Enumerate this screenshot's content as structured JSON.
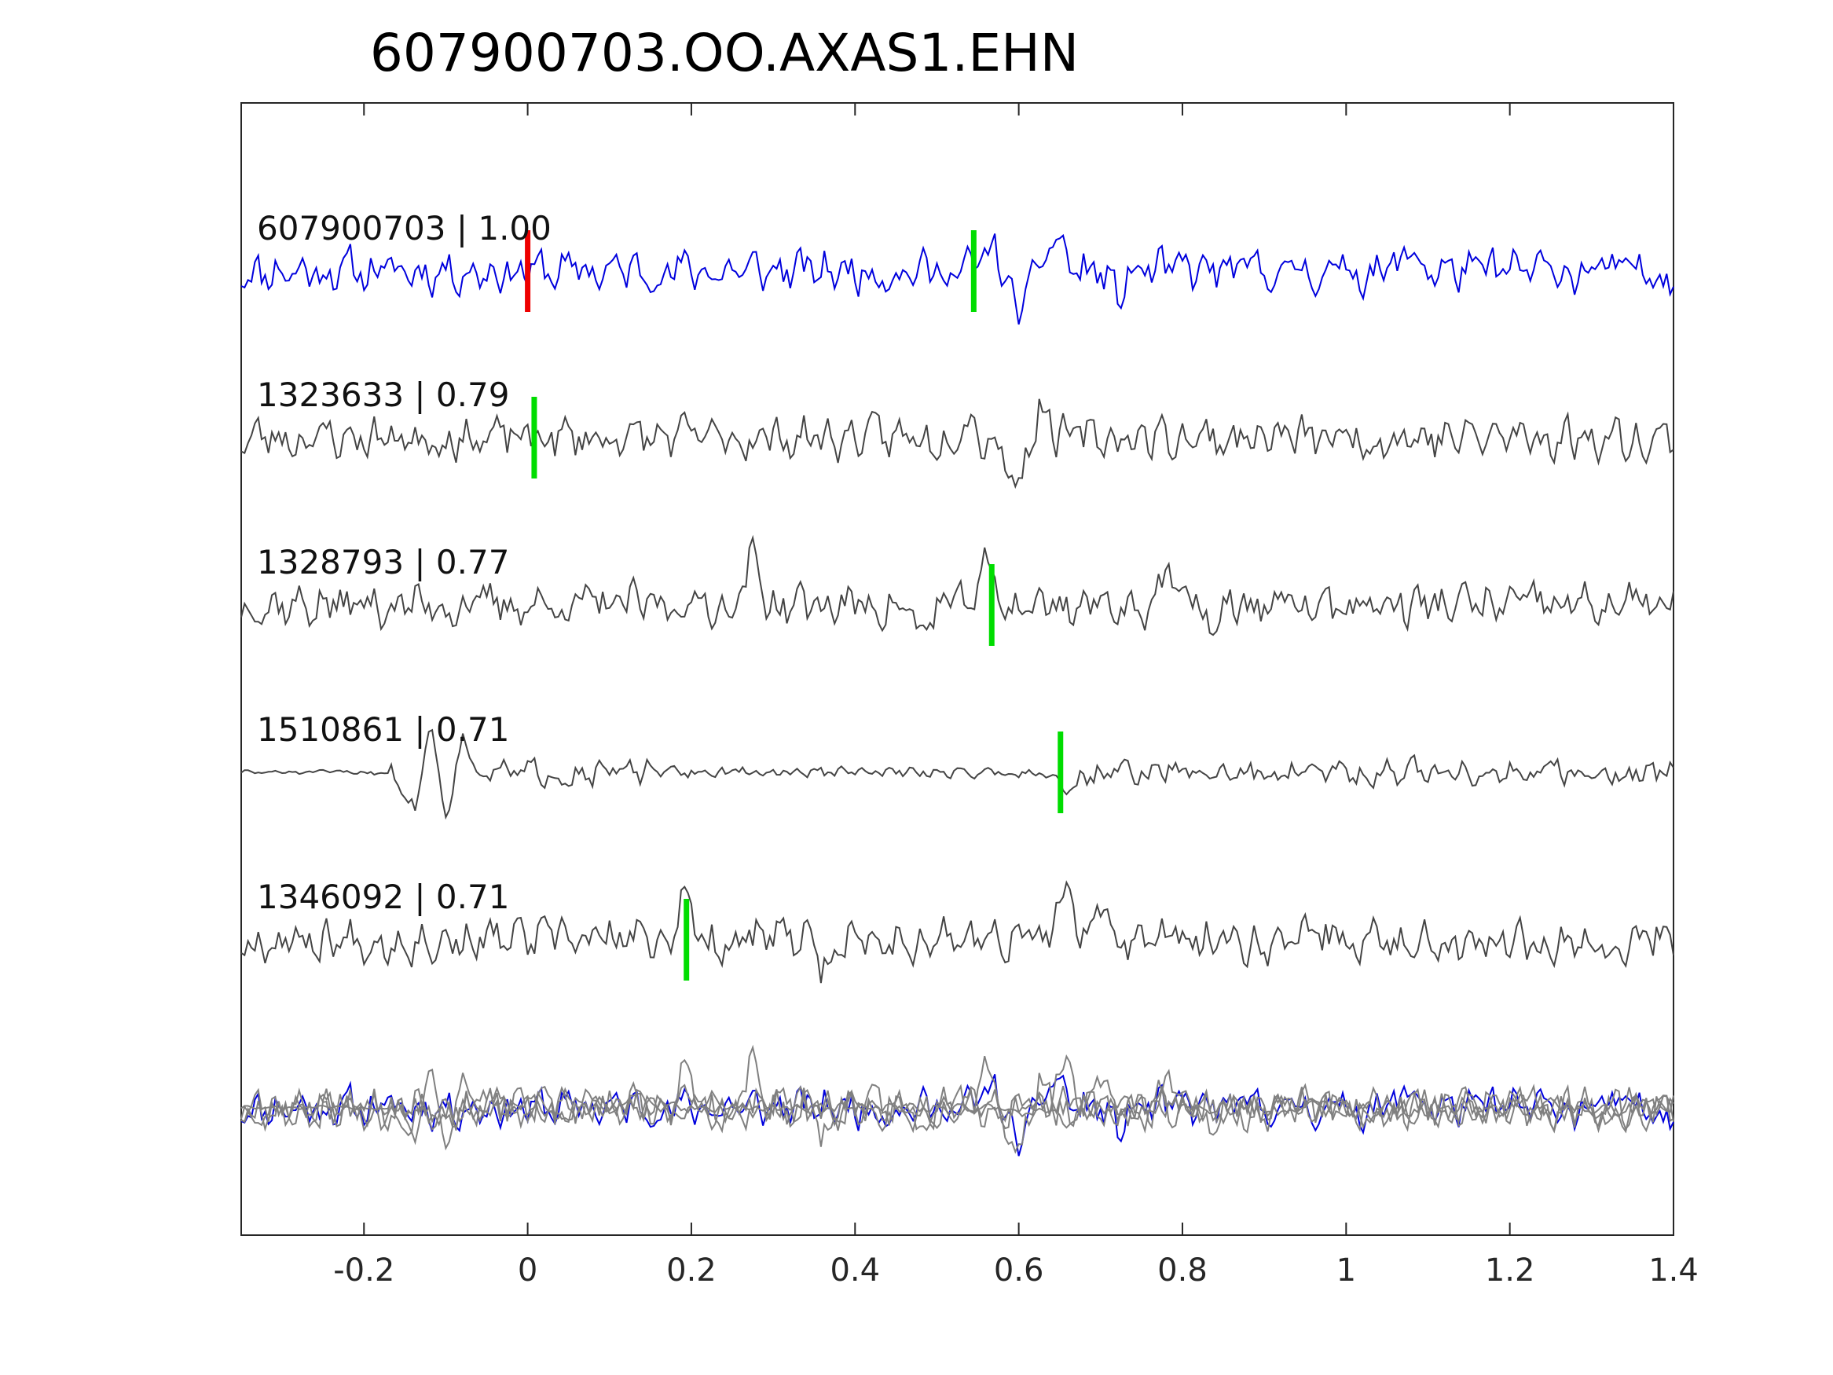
{
  "chart_data": {
    "type": "line",
    "title": "607900703.OO.AXAS1.EHN",
    "xlabel": "",
    "ylabel": "",
    "xlim": [
      -0.35,
      1.4
    ],
    "xticks": [
      -0.2,
      0,
      0.2,
      0.4,
      0.6,
      0.8,
      1,
      1.2,
      1.4
    ],
    "xtick_labels": [
      "-0.2",
      "0",
      "0.2",
      "0.4",
      "0.6",
      "0.8",
      "1",
      "1.2",
      "1.4"
    ],
    "yticks_shown": false,
    "colors": {
      "master": "#0000dd",
      "match": "#444444",
      "overlay": "#808080",
      "origin_pick": "#ee0000",
      "phase_pick": "#00dd00",
      "axes": "#262626"
    },
    "series": [
      {
        "name": "607900703",
        "label": "607900703 | 1.00",
        "correlation": 1.0,
        "color": "master",
        "origin_pick": 0.0,
        "phase_pick": 0.545,
        "features": [
          [
            0.565,
            0.55
          ],
          [
            0.6,
            -1.1
          ],
          [
            0.645,
            0.9
          ],
          [
            0.72,
            -0.6
          ],
          [
            1.08,
            0.55
          ]
        ]
      },
      {
        "name": "1323633",
        "label": "1323633 | 0.79",
        "correlation": 0.79,
        "color": "match",
        "phase_pick": 0.008,
        "features": [
          [
            0.535,
            0.6
          ],
          [
            0.595,
            -1.25
          ],
          [
            0.63,
            0.7
          ]
        ]
      },
      {
        "name": "1328793",
        "label": "1328793 | 0.77",
        "correlation": 0.77,
        "color": "match",
        "phase_pick": 0.567,
        "features": [
          [
            0.275,
            1.1
          ],
          [
            0.56,
            0.9
          ],
          [
            0.48,
            -0.75
          ],
          [
            0.78,
            0.8
          ],
          [
            0.84,
            -0.6
          ]
        ]
      },
      {
        "name": "1510861",
        "label": "1510861 | 0.71",
        "correlation": 0.71,
        "color": "match",
        "phase_pick": 0.651,
        "features": [
          [
            -0.12,
            1.15
          ],
          [
            -0.14,
            -1.05
          ],
          [
            -0.1,
            -0.95
          ],
          [
            -0.08,
            0.85
          ],
          [
            0.665,
            -0.45
          ]
        ]
      },
      {
        "name": "1346092",
        "label": "1346092 | 0.71",
        "correlation": 0.71,
        "color": "match",
        "phase_pick": 0.194,
        "features": [
          [
            0.19,
            0.95
          ],
          [
            0.36,
            -0.8
          ],
          [
            0.655,
            1.15
          ],
          [
            0.7,
            0.75
          ]
        ]
      }
    ]
  }
}
